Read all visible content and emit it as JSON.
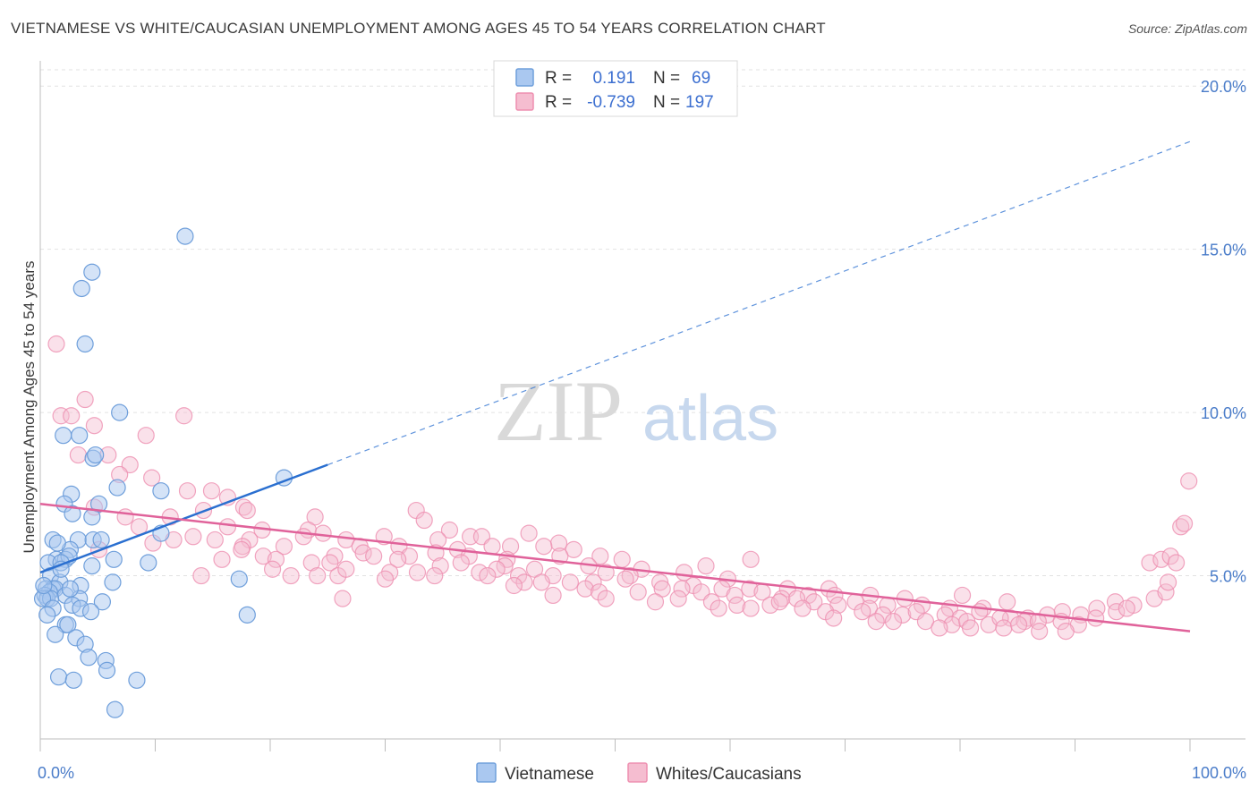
{
  "title": "VIETNAMESE VS WHITE/CAUCASIAN UNEMPLOYMENT AMONG AGES 45 TO 54 YEARS CORRELATION CHART",
  "source": "Source: ZipAtlas.com",
  "watermark": {
    "zip": "ZIP",
    "atlas": "atlas"
  },
  "colors": {
    "blue_fill": "#aac8f0",
    "blue_stroke": "#6f9fdb",
    "blue_line": "#2a6fd0",
    "pink_fill": "#f5bdd0",
    "pink_stroke": "#ee8fb0",
    "pink_line": "#e0629a",
    "grid": "#e2e2e2",
    "tick_text": "#4a7cc9"
  },
  "legend": {
    "rows": [
      {
        "r_label": "R =",
        "r_value": "0.191",
        "n_label": "N =",
        "n_value": "69"
      },
      {
        "r_label": "R =",
        "r_value": "-0.739",
        "n_label": "N =",
        "n_value": "197"
      }
    ]
  },
  "bottom_legend": [
    "Vietnamese",
    "Whites/Caucasians"
  ],
  "chart_data": {
    "type": "scatter",
    "title": "VIETNAMESE VS WHITE/CAUCASIAN UNEMPLOYMENT AMONG AGES 45 TO 54 YEARS CORRELATION CHART",
    "xlabel": "",
    "ylabel": "Unemployment Among Ages 45 to 54 years",
    "xlim": [
      0,
      100
    ],
    "ylim": [
      0,
      20.5
    ],
    "x_tick_labels": [
      "0.0%",
      "100.0%"
    ],
    "y_ticks": [
      5,
      10,
      15,
      20
    ],
    "y_tick_labels": [
      "5.0%",
      "10.0%",
      "15.0%",
      "20.0%"
    ],
    "grid": true,
    "legend_position": "top-center",
    "series": [
      {
        "name": "Vietnamese",
        "R": 0.191,
        "N": 69,
        "trend": {
          "x0": 0,
          "y0": 5.1,
          "x1": 25,
          "y1": 8.4,
          "dash_to_x": 100,
          "dash_to_y": 18.3
        },
        "points": [
          [
            12.6,
            15.4
          ],
          [
            4.5,
            14.3
          ],
          [
            3.6,
            13.8
          ],
          [
            3.9,
            12.1
          ],
          [
            6.9,
            10.0
          ],
          [
            2.0,
            9.3
          ],
          [
            3.4,
            9.3
          ],
          [
            4.6,
            8.6
          ],
          [
            4.8,
            8.7
          ],
          [
            21.2,
            8.0
          ],
          [
            2.7,
            7.5
          ],
          [
            6.7,
            7.7
          ],
          [
            10.5,
            7.6
          ],
          [
            2.1,
            7.2
          ],
          [
            5.1,
            7.2
          ],
          [
            2.8,
            6.9
          ],
          [
            4.5,
            6.8
          ],
          [
            1.1,
            6.1
          ],
          [
            3.3,
            6.1
          ],
          [
            4.6,
            6.1
          ],
          [
            5.3,
            6.1
          ],
          [
            10.5,
            6.3
          ],
          [
            2.6,
            5.8
          ],
          [
            1.4,
            5.5
          ],
          [
            2.2,
            5.5
          ],
          [
            2.5,
            5.6
          ],
          [
            6.4,
            5.5
          ],
          [
            9.4,
            5.4
          ],
          [
            0.7,
            5.4
          ],
          [
            1.8,
            5.4
          ],
          [
            4.5,
            5.3
          ],
          [
            0.9,
            5.0
          ],
          [
            1.7,
            4.8
          ],
          [
            3.5,
            4.7
          ],
          [
            6.3,
            4.8
          ],
          [
            17.3,
            4.9
          ],
          [
            0.5,
            4.6
          ],
          [
            1.1,
            4.6
          ],
          [
            1.3,
            4.6
          ],
          [
            0.8,
            4.5
          ],
          [
            0.4,
            4.4
          ],
          [
            2.2,
            4.4
          ],
          [
            3.4,
            4.3
          ],
          [
            0.6,
            4.3
          ],
          [
            0.9,
            4.3
          ],
          [
            2.8,
            4.1
          ],
          [
            5.4,
            4.2
          ],
          [
            0.2,
            4.3
          ],
          [
            1.1,
            4.0
          ],
          [
            3.5,
            4.0
          ],
          [
            4.4,
            3.9
          ],
          [
            18.0,
            3.8
          ],
          [
            0.6,
            3.8
          ],
          [
            2.2,
            3.5
          ],
          [
            2.4,
            3.5
          ],
          [
            1.3,
            3.2
          ],
          [
            3.1,
            3.1
          ],
          [
            3.9,
            2.9
          ],
          [
            4.2,
            2.5
          ],
          [
            5.7,
            2.4
          ],
          [
            5.8,
            2.1
          ],
          [
            1.6,
            1.9
          ],
          [
            2.9,
            1.8
          ],
          [
            8.4,
            1.8
          ],
          [
            6.5,
            0.9
          ],
          [
            1.8,
            5.2
          ],
          [
            0.3,
            4.7
          ],
          [
            2.6,
            4.6
          ],
          [
            1.5,
            6.0
          ]
        ]
      },
      {
        "name": "Whites/Caucasians",
        "R": -0.739,
        "N": 197,
        "trend": {
          "x0": 0,
          "y0": 7.2,
          "x1": 100,
          "y1": 3.3
        },
        "points": [
          [
            1.4,
            12.1
          ],
          [
            3.9,
            10.4
          ],
          [
            1.8,
            9.9
          ],
          [
            2.7,
            9.9
          ],
          [
            12.5,
            9.9
          ],
          [
            4.7,
            9.6
          ],
          [
            9.2,
            9.3
          ],
          [
            3.3,
            8.7
          ],
          [
            5.9,
            8.7
          ],
          [
            7.8,
            8.4
          ],
          [
            9.7,
            8.0
          ],
          [
            6.9,
            8.1
          ],
          [
            14.9,
            7.6
          ],
          [
            12.8,
            7.6
          ],
          [
            16.3,
            7.4
          ],
          [
            17.7,
            7.1
          ],
          [
            4.7,
            7.1
          ],
          [
            14.2,
            7.0
          ],
          [
            11.3,
            6.8
          ],
          [
            7.4,
            6.8
          ],
          [
            18.0,
            7.0
          ],
          [
            23.9,
            6.8
          ],
          [
            32.7,
            7.0
          ],
          [
            33.4,
            6.7
          ],
          [
            35.6,
            6.4
          ],
          [
            16.3,
            6.5
          ],
          [
            19.3,
            6.4
          ],
          [
            23.3,
            6.4
          ],
          [
            24.6,
            6.3
          ],
          [
            29.9,
            6.2
          ],
          [
            37.4,
            6.2
          ],
          [
            38.4,
            6.2
          ],
          [
            42.5,
            6.3
          ],
          [
            8.6,
            6.5
          ],
          [
            13.3,
            6.2
          ],
          [
            15.2,
            6.1
          ],
          [
            18.2,
            6.1
          ],
          [
            22.9,
            6.2
          ],
          [
            26.6,
            6.1
          ],
          [
            27.8,
            5.9
          ],
          [
            34.6,
            6.1
          ],
          [
            40.9,
            5.9
          ],
          [
            45.1,
            6.0
          ],
          [
            9.8,
            6.0
          ],
          [
            11.6,
            6.1
          ],
          [
            17.6,
            5.9
          ],
          [
            21.2,
            5.9
          ],
          [
            28.1,
            5.7
          ],
          [
            31.2,
            5.9
          ],
          [
            36.3,
            5.8
          ],
          [
            39.3,
            5.9
          ],
          [
            43.8,
            5.9
          ],
          [
            46.4,
            5.8
          ],
          [
            5.1,
            5.8
          ],
          [
            17.5,
            5.8
          ],
          [
            19.4,
            5.6
          ],
          [
            25.6,
            5.6
          ],
          [
            29.0,
            5.6
          ],
          [
            32.1,
            5.6
          ],
          [
            34.4,
            5.7
          ],
          [
            37.3,
            5.6
          ],
          [
            40.6,
            5.5
          ],
          [
            45.2,
            5.6
          ],
          [
            48.7,
            5.6
          ],
          [
            50.6,
            5.5
          ],
          [
            15.8,
            5.5
          ],
          [
            20.5,
            5.5
          ],
          [
            23.6,
            5.4
          ],
          [
            25.2,
            5.4
          ],
          [
            31.1,
            5.5
          ],
          [
            34.8,
            5.3
          ],
          [
            36.6,
            5.4
          ],
          [
            40.4,
            5.3
          ],
          [
            43.0,
            5.2
          ],
          [
            47.7,
            5.3
          ],
          [
            52.3,
            5.2
          ],
          [
            57.9,
            5.3
          ],
          [
            61.8,
            5.5
          ],
          [
            20.2,
            5.2
          ],
          [
            21.8,
            5.0
          ],
          [
            24.1,
            5.0
          ],
          [
            25.9,
            5.0
          ],
          [
            26.6,
            5.2
          ],
          [
            30.4,
            5.1
          ],
          [
            32.8,
            5.1
          ],
          [
            38.2,
            5.1
          ],
          [
            39.7,
            5.2
          ],
          [
            41.6,
            5.0
          ],
          [
            44.6,
            5.0
          ],
          [
            49.2,
            5.1
          ],
          [
            51.3,
            5.0
          ],
          [
            56.0,
            5.1
          ],
          [
            59.8,
            4.9
          ],
          [
            14.0,
            5.0
          ],
          [
            30.0,
            4.9
          ],
          [
            34.3,
            5.0
          ],
          [
            38.9,
            5.0
          ],
          [
            42.1,
            4.8
          ],
          [
            43.6,
            4.8
          ],
          [
            46.1,
            4.8
          ],
          [
            48.1,
            4.8
          ],
          [
            50.9,
            4.9
          ],
          [
            53.9,
            4.8
          ],
          [
            56.8,
            4.7
          ],
          [
            59.3,
            4.6
          ],
          [
            61.7,
            4.6
          ],
          [
            65.0,
            4.6
          ],
          [
            68.6,
            4.6
          ],
          [
            41.2,
            4.7
          ],
          [
            47.4,
            4.6
          ],
          [
            48.6,
            4.5
          ],
          [
            52.0,
            4.5
          ],
          [
            54.1,
            4.6
          ],
          [
            55.8,
            4.6
          ],
          [
            57.5,
            4.5
          ],
          [
            60.4,
            4.4
          ],
          [
            62.8,
            4.5
          ],
          [
            66.8,
            4.4
          ],
          [
            69.1,
            4.4
          ],
          [
            72.2,
            4.4
          ],
          [
            75.2,
            4.3
          ],
          [
            80.2,
            4.4
          ],
          [
            44.6,
            4.4
          ],
          [
            49.2,
            4.3
          ],
          [
            53.5,
            4.2
          ],
          [
            55.5,
            4.3
          ],
          [
            58.4,
            4.2
          ],
          [
            60.6,
            4.1
          ],
          [
            63.5,
            4.1
          ],
          [
            64.5,
            4.3
          ],
          [
            65.8,
            4.3
          ],
          [
            67.3,
            4.2
          ],
          [
            69.4,
            4.1
          ],
          [
            70.9,
            4.2
          ],
          [
            72.1,
            4.0
          ],
          [
            73.7,
            4.1
          ],
          [
            76.7,
            4.1
          ],
          [
            79.1,
            4.0
          ],
          [
            82.0,
            4.0
          ],
          [
            26.3,
            4.3
          ],
          [
            59.0,
            4.0
          ],
          [
            61.8,
            4.0
          ],
          [
            64.3,
            4.2
          ],
          [
            66.3,
            4.0
          ],
          [
            68.3,
            3.9
          ],
          [
            71.5,
            3.9
          ],
          [
            73.3,
            3.8
          ],
          [
            75.0,
            3.8
          ],
          [
            76.2,
            3.9
          ],
          [
            78.7,
            3.8
          ],
          [
            80.0,
            3.7
          ],
          [
            81.7,
            3.9
          ],
          [
            84.4,
            3.7
          ],
          [
            85.9,
            3.7
          ],
          [
            87.6,
            3.8
          ],
          [
            88.9,
            3.9
          ],
          [
            90.5,
            3.8
          ],
          [
            91.9,
            4.0
          ],
          [
            93.5,
            4.2
          ],
          [
            95.1,
            4.1
          ],
          [
            69.0,
            3.7
          ],
          [
            72.7,
            3.6
          ],
          [
            74.2,
            3.6
          ],
          [
            77.0,
            3.6
          ],
          [
            79.3,
            3.5
          ],
          [
            80.6,
            3.6
          ],
          [
            82.5,
            3.5
          ],
          [
            83.5,
            3.7
          ],
          [
            85.6,
            3.6
          ],
          [
            86.8,
            3.6
          ],
          [
            88.8,
            3.6
          ],
          [
            90.3,
            3.5
          ],
          [
            91.8,
            3.7
          ],
          [
            93.6,
            3.9
          ],
          [
            94.5,
            4.0
          ],
          [
            78.2,
            3.4
          ],
          [
            80.9,
            3.4
          ],
          [
            83.8,
            3.4
          ],
          [
            85.1,
            3.5
          ],
          [
            86.9,
            3.3
          ],
          [
            89.2,
            3.3
          ],
          [
            96.9,
            4.3
          ],
          [
            97.9,
            4.5
          ],
          [
            98.1,
            4.8
          ],
          [
            96.5,
            5.4
          ],
          [
            97.5,
            5.5
          ],
          [
            98.3,
            5.6
          ],
          [
            98.8,
            5.4
          ],
          [
            99.2,
            6.5
          ],
          [
            99.9,
            7.9
          ],
          [
            99.5,
            6.6
          ],
          [
            84.1,
            4.2
          ]
        ]
      }
    ]
  }
}
